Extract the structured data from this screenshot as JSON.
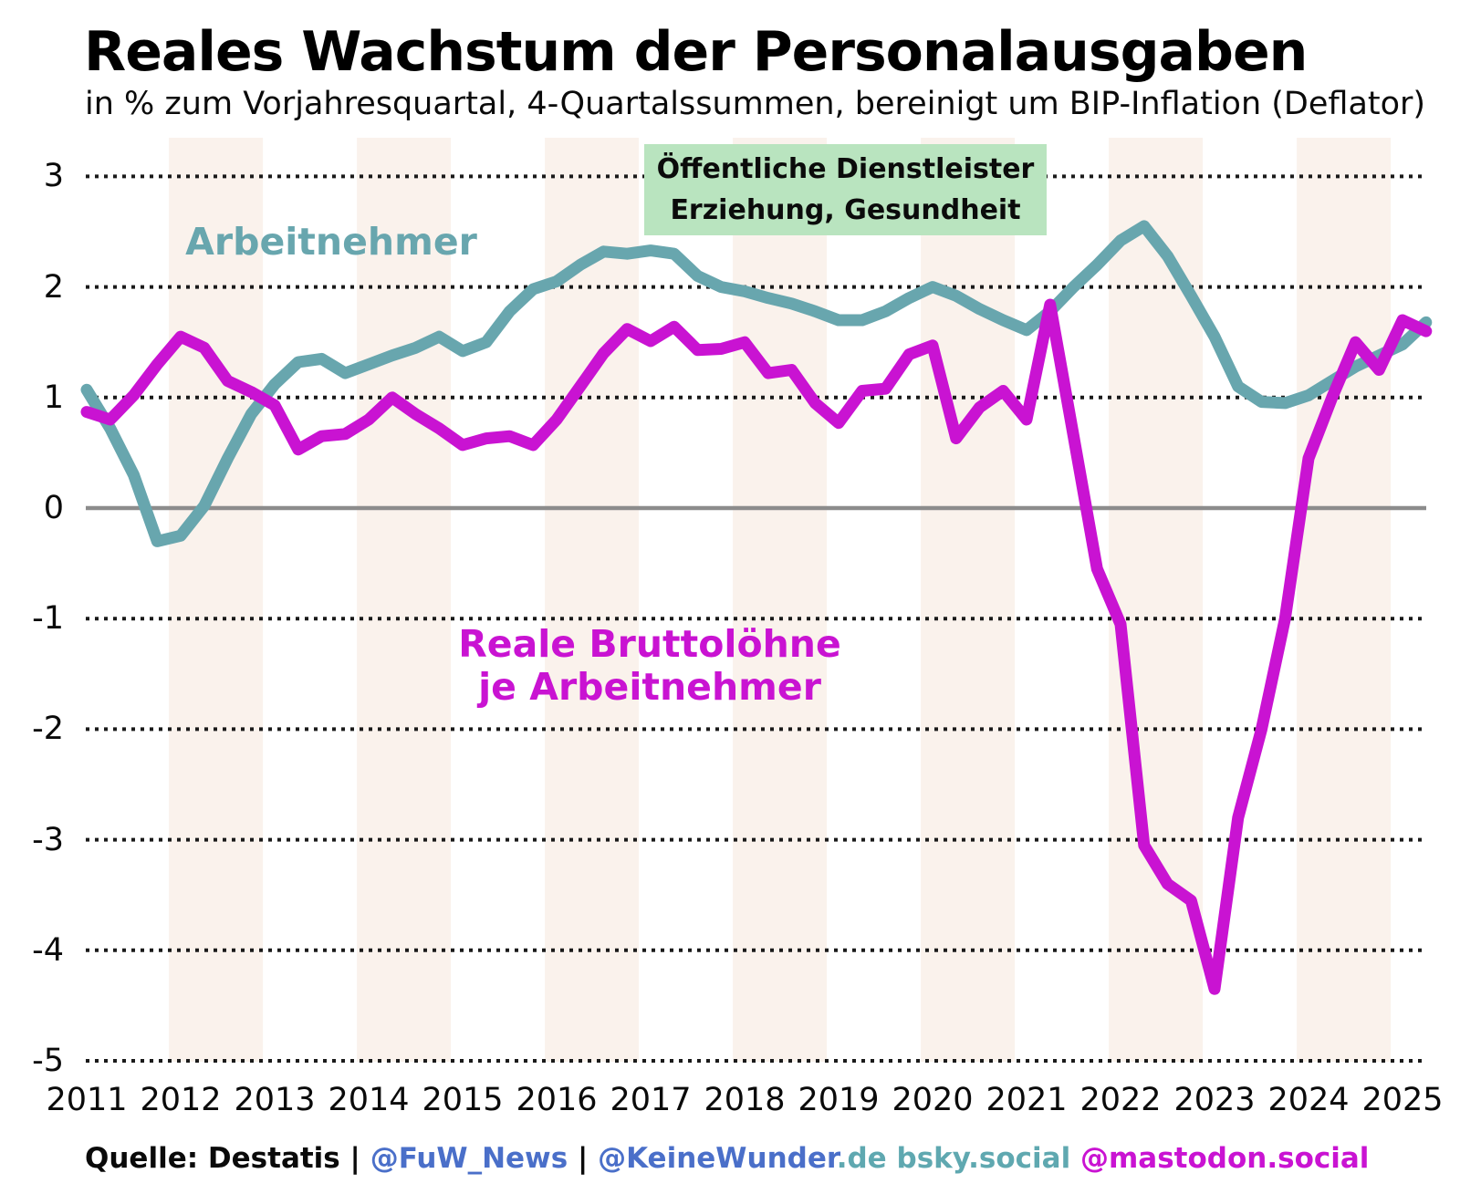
{
  "title": "Reales Wachstum der Personalausgaben",
  "subtitle": "in % zum Vorjahresquartal, 4-Quartalssummen, bereinigt um BIP-Inflation (Deflator)",
  "annotations": {
    "sector_box_line1": "Öffentliche Dienstleister",
    "sector_box_line2": "Erziehung, Gesundheit",
    "series1_label": "Arbeitnehmer",
    "series2_label_line1": "Reale Bruttolöhne",
    "series2_label_line2": "je Arbeitnehmer"
  },
  "footer": {
    "source": "Quelle: Destatis",
    "sep1": " | ",
    "handle_fuw": "@FuW_News",
    "sep2": " | ",
    "handle_keinewunder": "@KeineWunder",
    "keinewunder_suffix": ".de",
    "bsky": " bsky.social ",
    "mastodon": "@mastodon.social"
  },
  "colors": {
    "arbeitnehmer_line": "#68a6ae",
    "bruttoloehne_line": "#c913d2",
    "annotation_box_bg": "#b9e4bf",
    "footer_handle_blue": "#4a6fc9",
    "footer_teal": "#5fa8b0",
    "footer_magenta": "#c913d2",
    "zero_line": "#8c8c8c",
    "gridline": "#1a1a1a",
    "year_band": "#faf2ec",
    "background": "#ffffff",
    "text": "#000000"
  },
  "chart_data": {
    "type": "line",
    "title": "Reales Wachstum der Personalausgaben",
    "subtitle": "in % zum Vorjahresquartal, 4-Quartalssummen, bereinigt um BIP-Inflation (Deflator)",
    "x_frequency": "quarterly",
    "x_start": "2011-Q1",
    "x_end": "2025-Q2",
    "x_tick_labels": [
      "2011",
      "2012",
      "2013",
      "2014",
      "2015",
      "2016",
      "2017",
      "2018",
      "2019",
      "2020",
      "2021",
      "2022",
      "2023",
      "2024",
      "2025"
    ],
    "y_ticks": [
      3,
      2,
      1,
      0,
      -1,
      -2,
      -3,
      -4,
      -5
    ],
    "ylim": [
      -5.35,
      3.35
    ],
    "ylabel": "",
    "xlabel": "",
    "grid": "dotted horizontal lines, solid gray zero line",
    "legend_position": "inline text annotations",
    "shaded_year_bands": [
      2012,
      2014,
      2016,
      2018,
      2020,
      2022,
      2024
    ],
    "series": [
      {
        "name": "Arbeitnehmer",
        "color": "#68a6ae",
        "values": [
          1.07,
          0.72,
          0.3,
          -0.3,
          -0.25,
          0.02,
          0.45,
          0.85,
          1.12,
          1.32,
          1.35,
          1.22,
          1.3,
          1.38,
          1.45,
          1.55,
          1.42,
          1.5,
          1.78,
          1.98,
          2.05,
          2.2,
          2.32,
          2.3,
          2.33,
          2.3,
          2.1,
          2.0,
          1.96,
          1.9,
          1.85,
          1.78,
          1.7,
          1.7,
          1.78,
          1.9,
          2.0,
          1.92,
          1.8,
          1.7,
          1.61,
          1.78,
          2.0,
          2.2,
          2.42,
          2.55,
          2.28,
          1.92,
          1.55,
          1.1,
          0.96,
          0.95,
          1.02,
          1.15,
          1.28,
          1.38,
          1.48,
          1.68
        ]
      },
      {
        "name": "Reale Bruttolöhne je Arbeitnehmer",
        "color": "#c913d2",
        "values": [
          0.87,
          0.8,
          1.02,
          1.3,
          1.55,
          1.45,
          1.15,
          1.05,
          0.93,
          0.53,
          0.65,
          0.67,
          0.8,
          1.0,
          0.85,
          0.72,
          0.57,
          0.63,
          0.65,
          0.57,
          0.8,
          1.1,
          1.4,
          1.62,
          1.51,
          1.64,
          1.43,
          1.44,
          1.5,
          1.22,
          1.25,
          0.95,
          0.77,
          1.06,
          1.08,
          1.39,
          1.47,
          0.63,
          0.91,
          1.06,
          0.8,
          1.84,
          0.65,
          -0.55,
          -1.05,
          -3.05,
          -3.4,
          -3.55,
          -4.35,
          -2.8,
          -2.0,
          -1.0,
          0.45,
          1.0,
          1.5,
          1.25,
          1.7,
          1.6
        ]
      }
    ]
  }
}
